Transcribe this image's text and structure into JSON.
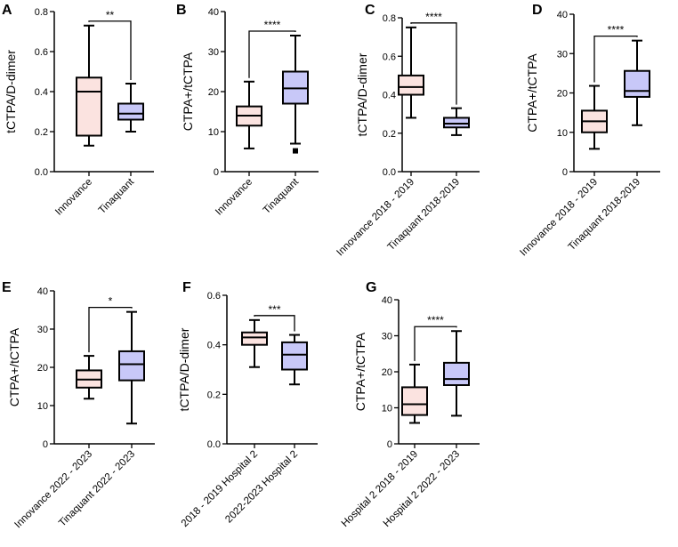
{
  "colors": {
    "group1_fill": "#fbe3e0",
    "group2_fill": "#c8c8f8",
    "stroke": "#000000"
  },
  "chart_data": [
    {
      "type": "box",
      "panel": "A",
      "ylabel": "tCTPA/D-dimer",
      "ylim": [
        0,
        0.8
      ],
      "yticks": [
        "0.0",
        "0.2",
        "0.4",
        "0.6",
        "0.8"
      ],
      "categories": [
        "Innovance",
        "Tinaquant"
      ],
      "significance": "**",
      "boxes": [
        {
          "min": 0.13,
          "q1": 0.18,
          "median": 0.4,
          "q3": 0.47,
          "max": 0.73,
          "outliers": []
        },
        {
          "min": 0.2,
          "q1": 0.26,
          "median": 0.29,
          "q3": 0.34,
          "max": 0.44,
          "outliers": []
        }
      ]
    },
    {
      "type": "box",
      "panel": "B",
      "ylabel": "CTPA+/tCTPA",
      "ylim": [
        0,
        40
      ],
      "yticks": [
        "0",
        "10",
        "20",
        "30",
        "40"
      ],
      "categories": [
        "Innovance",
        "Tinaquant"
      ],
      "significance": "****",
      "boxes": [
        {
          "min": 5.8,
          "q1": 11.5,
          "median": 14.0,
          "q3": 16.3,
          "max": 22.5,
          "outliers": []
        },
        {
          "min": 7.0,
          "q1": 17.0,
          "median": 20.8,
          "q3": 25.0,
          "max": 34.0,
          "outliers": [
            5.2
          ]
        }
      ]
    },
    {
      "type": "box",
      "panel": "C",
      "ylabel": "tCTPA/D-dimer",
      "ylim": [
        0,
        0.8
      ],
      "yticks": [
        "0.0",
        "0.2",
        "0.4",
        "0.6",
        "0.8"
      ],
      "categories": [
        "Innovance 2018 - 2019",
        "Tinaquant 2018-2019"
      ],
      "significance": "****",
      "boxes": [
        {
          "min": 0.28,
          "q1": 0.4,
          "median": 0.44,
          "q3": 0.5,
          "max": 0.75,
          "outliers": []
        },
        {
          "min": 0.19,
          "q1": 0.23,
          "median": 0.25,
          "q3": 0.28,
          "max": 0.33,
          "outliers": []
        }
      ]
    },
    {
      "type": "box",
      "panel": "D",
      "ylabel": "CTPA+/tCTPA",
      "ylim": [
        0,
        40
      ],
      "yticks": [
        "0",
        "10",
        "20",
        "30",
        "40"
      ],
      "categories": [
        "Innovance 2018 - 2019",
        "Tinaquant 2018-2019"
      ],
      "significance": "****",
      "boxes": [
        {
          "min": 5.8,
          "q1": 10.0,
          "median": 12.8,
          "q3": 15.5,
          "max": 21.8,
          "outliers": []
        },
        {
          "min": 11.8,
          "q1": 19.0,
          "median": 20.5,
          "q3": 25.6,
          "max": 33.3,
          "outliers": []
        }
      ]
    },
    {
      "type": "box",
      "panel": "E",
      "ylabel": "CTPA+/tCTPA",
      "ylim": [
        0,
        40
      ],
      "yticks": [
        "0",
        "10",
        "20",
        "30",
        "40"
      ],
      "categories": [
        "Innovance 2022 - 2023",
        "Tinaquant 2022 - 2023"
      ],
      "significance": "*",
      "boxes": [
        {
          "min": 11.8,
          "q1": 14.7,
          "median": 16.8,
          "q3": 19.2,
          "max": 23.0,
          "outliers": []
        },
        {
          "min": 5.3,
          "q1": 16.6,
          "median": 20.8,
          "q3": 24.2,
          "max": 34.5,
          "outliers": []
        }
      ]
    },
    {
      "type": "box",
      "panel": "F",
      "ylabel": "tCTPA/D-dimer",
      "ylim": [
        0,
        0.6
      ],
      "yticks": [
        "0.0",
        "0.2",
        "0.4",
        "0.6"
      ],
      "categories": [
        "2018 - 2019 Hospital 2",
        "2022-2023 Hospital 2"
      ],
      "significance": "***",
      "boxes": [
        {
          "min": 0.31,
          "q1": 0.4,
          "median": 0.43,
          "q3": 0.45,
          "max": 0.5,
          "outliers": []
        },
        {
          "min": 0.24,
          "q1": 0.3,
          "median": 0.36,
          "q3": 0.41,
          "max": 0.44,
          "outliers": []
        }
      ]
    },
    {
      "type": "box",
      "panel": "G",
      "ylabel": "CTPA+/tCTPA",
      "ylim": [
        0,
        40
      ],
      "yticks": [
        "0",
        "10",
        "20",
        "30",
        "40"
      ],
      "categories": [
        "Hospital 2 2018 - 2019",
        "Hospital 2 2022 - 2023"
      ],
      "significance": "****",
      "boxes": [
        {
          "min": 5.8,
          "q1": 8.0,
          "median": 11.0,
          "q3": 15.7,
          "max": 22.0,
          "outliers": []
        },
        {
          "min": 7.8,
          "q1": 16.3,
          "median": 18.0,
          "q3": 22.5,
          "max": 31.3,
          "outliers": []
        }
      ]
    }
  ]
}
